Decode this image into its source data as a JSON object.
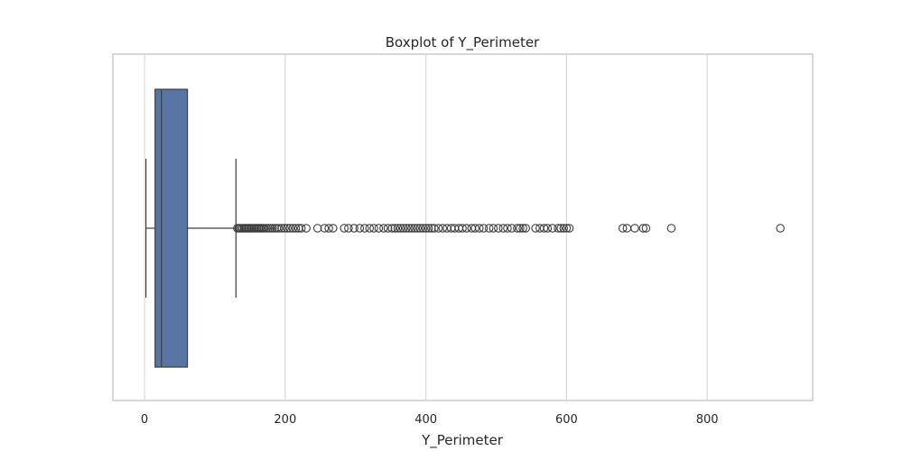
{
  "chart_data": {
    "type": "boxplot",
    "title": "Boxplot of Y_Perimeter",
    "xlabel": "Y_Perimeter",
    "ylabel": "",
    "xlim": [
      -45,
      950
    ],
    "x_ticks": [
      0,
      200,
      400,
      600,
      800
    ],
    "x_tick_labels": [
      "0",
      "200",
      "400",
      "600",
      "800"
    ],
    "grid": "x-axis vertical",
    "orientation": "horizontal",
    "box": {
      "whisker_low": 2,
      "q1": 15,
      "median": 24,
      "q3": 61,
      "whisker_high": 130,
      "color": "#5975a4"
    },
    "outliers": [
      132,
      134,
      136,
      138,
      140,
      142,
      144,
      146,
      148,
      150,
      152,
      154,
      156,
      158,
      160,
      162,
      164,
      166,
      168,
      170,
      173,
      176,
      179,
      182,
      185,
      188,
      191,
      195,
      199,
      203,
      207,
      211,
      215,
      219,
      223,
      230,
      246,
      256,
      262,
      268,
      284,
      290,
      298,
      306,
      313,
      320,
      326,
      333,
      340,
      346,
      352,
      356,
      360,
      364,
      368,
      372,
      376,
      380,
      384,
      388,
      392,
      396,
      400,
      404,
      408,
      412,
      418,
      424,
      430,
      436,
      441,
      447,
      452,
      458,
      465,
      470,
      476,
      482,
      490,
      496,
      503,
      510,
      516,
      522,
      530,
      534,
      538,
      542,
      556,
      562,
      568,
      573,
      580,
      588,
      592,
      596,
      600,
      604,
      680,
      686,
      697,
      709,
      713,
      749,
      904
    ]
  },
  "colors": {
    "box_fill": "#5975a4",
    "line": "#3d3d3d",
    "grid": "#d9d9d9",
    "frame": "#cccccc",
    "text": "#262626"
  }
}
